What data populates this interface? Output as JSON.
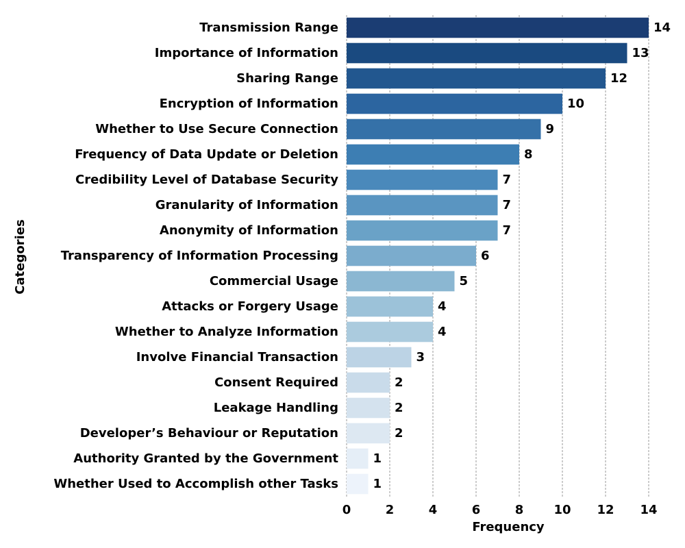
{
  "chart_data": {
    "type": "bar",
    "orientation": "horizontal",
    "xlabel": "Frequency",
    "ylabel": "Categories",
    "xlim": [
      0,
      14
    ],
    "xticks": [
      0,
      2,
      4,
      6,
      8,
      10,
      12,
      14
    ],
    "grid": "vertical dashed",
    "categories": [
      "Transmission Range",
      "Importance of Information",
      "Sharing Range",
      "Encryption of Information",
      "Whether to Use Secure Connection",
      "Frequency of Data Update or Deletion",
      "Credibility Level of Database Security",
      "Granularity of Information",
      "Anonymity of Information",
      "Transparency of Information Processing",
      "Commercial Usage",
      "Attacks or Forgery Usage",
      "Whether to Analyze Information",
      "Involve Financial Transaction",
      "Consent Required",
      "Leakage Handling",
      "Developer’s Behaviour or Reputation",
      "Authority Granted by the Government",
      "Whether Used to Accomplish other Tasks"
    ],
    "values": [
      14,
      13,
      12,
      10,
      9,
      8,
      7,
      7,
      7,
      6,
      5,
      4,
      4,
      3,
      2,
      2,
      2,
      1,
      1
    ],
    "colors": [
      "#1b3d73",
      "#1a4a80",
      "#22578f",
      "#2c65a0",
      "#3571a8",
      "#3d7eb3",
      "#4a89bb",
      "#5a95c1",
      "#6aa2c7",
      "#7baccd",
      "#8bb7d2",
      "#9cc2d9",
      "#abcbde",
      "#bcd3e5",
      "#c9dbea",
      "#d4e2ee",
      "#dde8f2",
      "#e5eef7",
      "#edf3fb"
    ]
  }
}
